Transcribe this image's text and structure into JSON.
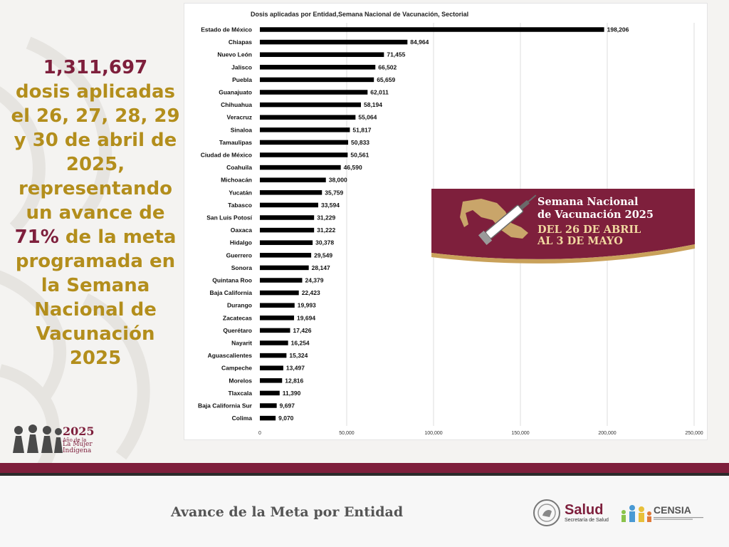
{
  "summary": {
    "total": "1,311,697",
    "text_a": "dosis aplicadas el 26, 27, 28, 29 y 30 de abril de 2025, representando un avance de",
    "percent": "71%",
    "text_b": "de la meta programada en la Semana Nacional de Vacunación 2025"
  },
  "banner": {
    "line1": "Semana Nacional",
    "line2": "de Vacunación 2025",
    "line3": "DEL 26 DE ABRIL",
    "line4": "AL 3 DE MAYO"
  },
  "logo": {
    "year": "2025",
    "line1": "Año de la",
    "line2": "La Mujer",
    "line3": "Indígena"
  },
  "footer": {
    "title": "Avance de la Meta por Entidad",
    "salud_name": "Salud",
    "salud_sub": "Secretaría de Salud",
    "censia_name": "CENSIA"
  },
  "colors": {
    "guinda": "#7e1f3c",
    "dorado": "#b38e1c",
    "bar": "#000000"
  },
  "chart_data": {
    "type": "bar",
    "orientation": "horizontal",
    "title": "Dosis aplicadas por Entidad,Semana Nacional de Vacunación, Sectorial",
    "xlabel": "",
    "ylabel": "",
    "xlim": [
      0,
      250000
    ],
    "x_ticks": [
      0,
      50000,
      100000,
      150000,
      200000,
      250000
    ],
    "x_tick_labels": [
      "0",
      "50,000",
      "100,000",
      "150,000",
      "200,000",
      "250,000"
    ],
    "grid": "vertical",
    "categories": [
      "Estado de México",
      "Chiapas",
      "Nuevo León",
      "Jalisco",
      "Puebla",
      "Guanajuato",
      "Chihuahua",
      "Veracruz",
      "Sinaloa",
      "Tamaulipas",
      "Ciudad de México",
      "Coahuila",
      "Michoacán",
      "Yucatán",
      "Tabasco",
      "San Luis Potosí",
      "Oaxaca",
      "Hidalgo",
      "Guerrero",
      "Sonora",
      "Quintana Roo",
      "Baja California",
      "Durango",
      "Zacatecas",
      "Querétaro",
      "Nayarit",
      "Aguascalientes",
      "Campeche",
      "Morelos",
      "Tlaxcala",
      "Baja California Sur",
      "Colima"
    ],
    "values": [
      198206,
      84964,
      71455,
      66502,
      65659,
      62011,
      58194,
      55064,
      51817,
      50833,
      50561,
      46590,
      38000,
      35759,
      33594,
      31229,
      31222,
      30378,
      29549,
      28147,
      24379,
      22423,
      19993,
      19694,
      17426,
      16254,
      15324,
      13497,
      12816,
      11390,
      9697,
      9070
    ],
    "value_labels": [
      "198,206",
      "84,964",
      "71,455",
      "66,502",
      "65,659",
      "62,011",
      "58,194",
      "55,064",
      "51,817",
      "50,833",
      "50,561",
      "46,590",
      "38,000",
      "35,759",
      "33,594",
      "31,229",
      "31,222",
      "30,378",
      "29,549",
      "28,147",
      "24,379",
      "22,423",
      "19,993",
      "19,694",
      "17,426",
      "16,254",
      "15,324",
      "13,497",
      "12,816",
      "11,390",
      "9,697",
      "9,070"
    ]
  }
}
